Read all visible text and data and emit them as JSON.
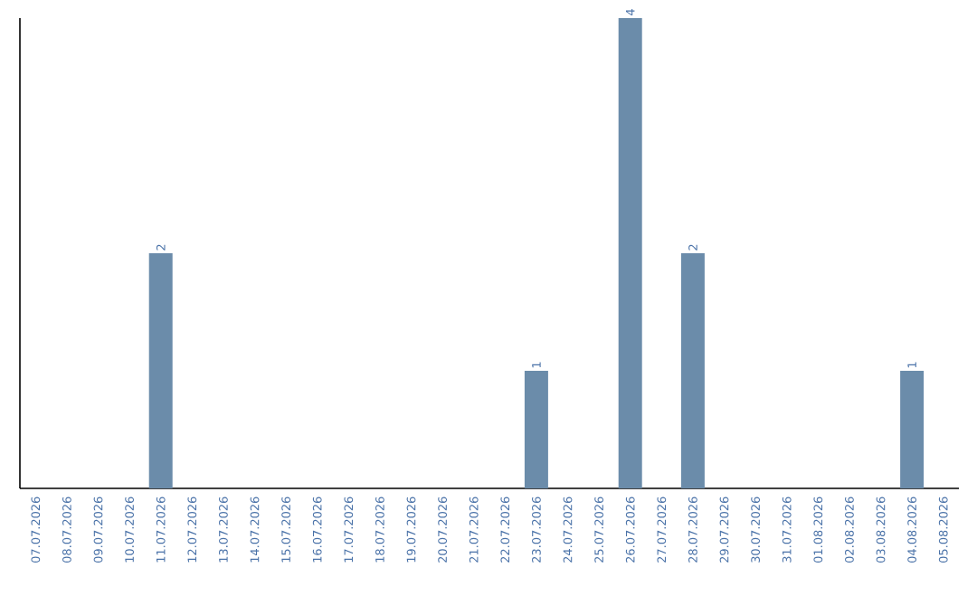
{
  "chart_data": {
    "type": "bar",
    "categories": [
      "07.07.2026",
      "08.07.2026",
      "09.07.2026",
      "10.07.2026",
      "11.07.2026",
      "12.07.2026",
      "13.07.2026",
      "14.07.2026",
      "15.07.2026",
      "16.07.2026",
      "17.07.2026",
      "18.07.2026",
      "19.07.2026",
      "20.07.2026",
      "21.07.2026",
      "22.07.2026",
      "23.07.2026",
      "24.07.2026",
      "25.07.2026",
      "26.07.2026",
      "27.07.2026",
      "28.07.2026",
      "29.07.2026",
      "30.07.2026",
      "31.07.2026",
      "01.08.2026",
      "02.08.2026",
      "03.08.2026",
      "04.08.2026",
      "05.08.2026"
    ],
    "values": [
      0,
      0,
      0,
      0,
      2,
      0,
      0,
      0,
      0,
      0,
      0,
      0,
      0,
      0,
      0,
      0,
      1,
      0,
      0,
      4,
      0,
      2,
      0,
      0,
      0,
      0,
      0,
      0,
      1,
      0
    ],
    "value_labels": [
      null,
      null,
      null,
      null,
      "2",
      null,
      null,
      null,
      null,
      null,
      null,
      null,
      null,
      null,
      null,
      null,
      "1",
      null,
      null,
      "4",
      null,
      "2",
      null,
      null,
      null,
      null,
      null,
      null,
      "1",
      null
    ],
    "color": "#6b8caa",
    "ylim": [
      0,
      4
    ]
  }
}
